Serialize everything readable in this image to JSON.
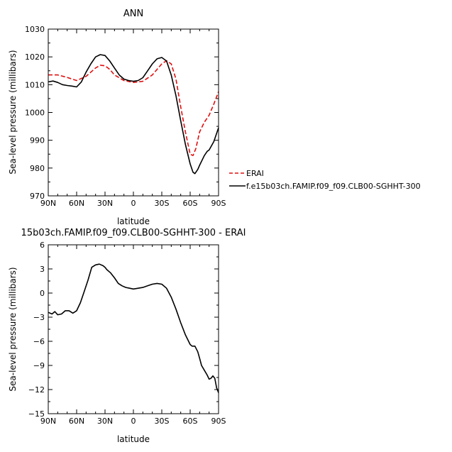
{
  "chart_data": [
    {
      "type": "line",
      "title": "ANN",
      "xlabel": "latitude",
      "ylabel": "Sea-level pressure (millibars)",
      "xlim": [
        90,
        -90
      ],
      "ylim": [
        970,
        1030
      ],
      "xticks": [
        90,
        60,
        30,
        0,
        -30,
        -60,
        -90
      ],
      "xtick_labels": [
        "90N",
        "60N",
        "30N",
        "0",
        "30S",
        "60S",
        "90S"
      ],
      "yticks": [
        970,
        980,
        990,
        1000,
        1010,
        1020,
        1030
      ],
      "ytick_labels": [
        "970",
        "980",
        "990",
        "1000",
        "1010",
        "1020",
        "1030"
      ],
      "legend": "right-bottom, outside plot",
      "series": [
        {
          "name": "ERAI",
          "style": "dashed",
          "color": "#e01010",
          "x": [
            90,
            80,
            70,
            60,
            50,
            40,
            35,
            30,
            25,
            20,
            10,
            0,
            -10,
            -20,
            -25,
            -30,
            -35,
            -40,
            -45,
            -50,
            -55,
            -60,
            -63,
            -66,
            -70,
            -75,
            -80,
            -85,
            -90
          ],
          "y": [
            1013.5,
            1013.5,
            1012.6,
            1011.5,
            1013,
            1016,
            1017,
            1016.8,
            1015.5,
            1013.5,
            1011.5,
            1010.8,
            1011.2,
            1013.5,
            1015.5,
            1017.5,
            1018.6,
            1017.5,
            1012,
            1002,
            993,
            985,
            984.5,
            987,
            993,
            996.5,
            999,
            1003,
            1007.5
          ]
        },
        {
          "name": "f.e15b03ch.FAMIP.f09_f09.CLB00-SGHHT-300",
          "style": "solid",
          "color": "#000000",
          "x": [
            90,
            85,
            80,
            75,
            70,
            65,
            60,
            55,
            50,
            45,
            40,
            35,
            30,
            25,
            20,
            15,
            10,
            5,
            0,
            -5,
            -10,
            -15,
            -20,
            -25,
            -30,
            -35,
            -40,
            -45,
            -50,
            -55,
            -60,
            -63,
            -65,
            -68,
            -70,
            -75,
            -78,
            -80,
            -85,
            -90
          ],
          "y": [
            1011,
            1011.3,
            1010.8,
            1010,
            1009.7,
            1009.5,
            1009.2,
            1011,
            1014.5,
            1017.5,
            1020,
            1020.8,
            1020.5,
            1018.5,
            1016,
            1013.5,
            1012,
            1011.5,
            1011.2,
            1011.5,
            1012.5,
            1015,
            1017.5,
            1019.3,
            1019.8,
            1018.5,
            1013.5,
            1006,
            997,
            988.5,
            981.5,
            978.5,
            978,
            979.5,
            981,
            984.5,
            986,
            986.5,
            989.5,
            994.5
          ]
        }
      ]
    },
    {
      "type": "line",
      "title": "15b03ch.FAMIP.f09_f09.CLB00-SGHHT-300 - ERAI",
      "xlabel": "latitude",
      "ylabel": "Sea-level pressure (millibars)",
      "xlim": [
        90,
        -90
      ],
      "ylim": [
        -15,
        6
      ],
      "xticks": [
        90,
        60,
        30,
        0,
        -30,
        -60,
        -90
      ],
      "xtick_labels": [
        "90N",
        "60N",
        "30N",
        "0",
        "30S",
        "60S",
        "90S"
      ],
      "yticks": [
        -15,
        -12,
        -9,
        -6,
        -3,
        0,
        3,
        6
      ],
      "ytick_labels": [
        "−15",
        "−12",
        "−9",
        "−6",
        "−3",
        "0",
        "3",
        "6"
      ],
      "series": [
        {
          "style": "solid",
          "color": "#000000",
          "x": [
            90,
            86,
            83,
            80,
            76,
            72,
            68,
            64,
            60,
            56,
            52,
            48,
            44,
            40,
            36,
            32,
            30,
            28,
            24,
            20,
            16,
            12,
            8,
            4,
            0,
            -5,
            -10,
            -15,
            -20,
            -25,
            -30,
            -35,
            -40,
            -45,
            -50,
            -55,
            -60,
            -62,
            -65,
            -68,
            -70,
            -72,
            -75,
            -78,
            -80,
            -82,
            -84,
            -86,
            -88,
            -90
          ],
          "y": [
            -2.4,
            -2.6,
            -2.3,
            -2.7,
            -2.6,
            -2.2,
            -2.2,
            -2.5,
            -2.2,
            -1.2,
            0.2,
            1.6,
            3.2,
            3.5,
            3.6,
            3.4,
            3.2,
            2.9,
            2.5,
            1.9,
            1.2,
            0.9,
            0.7,
            0.6,
            0.5,
            0.6,
            0.7,
            0.9,
            1.1,
            1.2,
            1.1,
            0.6,
            -0.5,
            -2.0,
            -3.7,
            -5.2,
            -6.4,
            -6.6,
            -6.6,
            -7.3,
            -8.1,
            -9.0,
            -9.6,
            -10.2,
            -10.7,
            -10.6,
            -10.3,
            -10.6,
            -11.8,
            -12.4
          ]
        }
      ]
    }
  ]
}
